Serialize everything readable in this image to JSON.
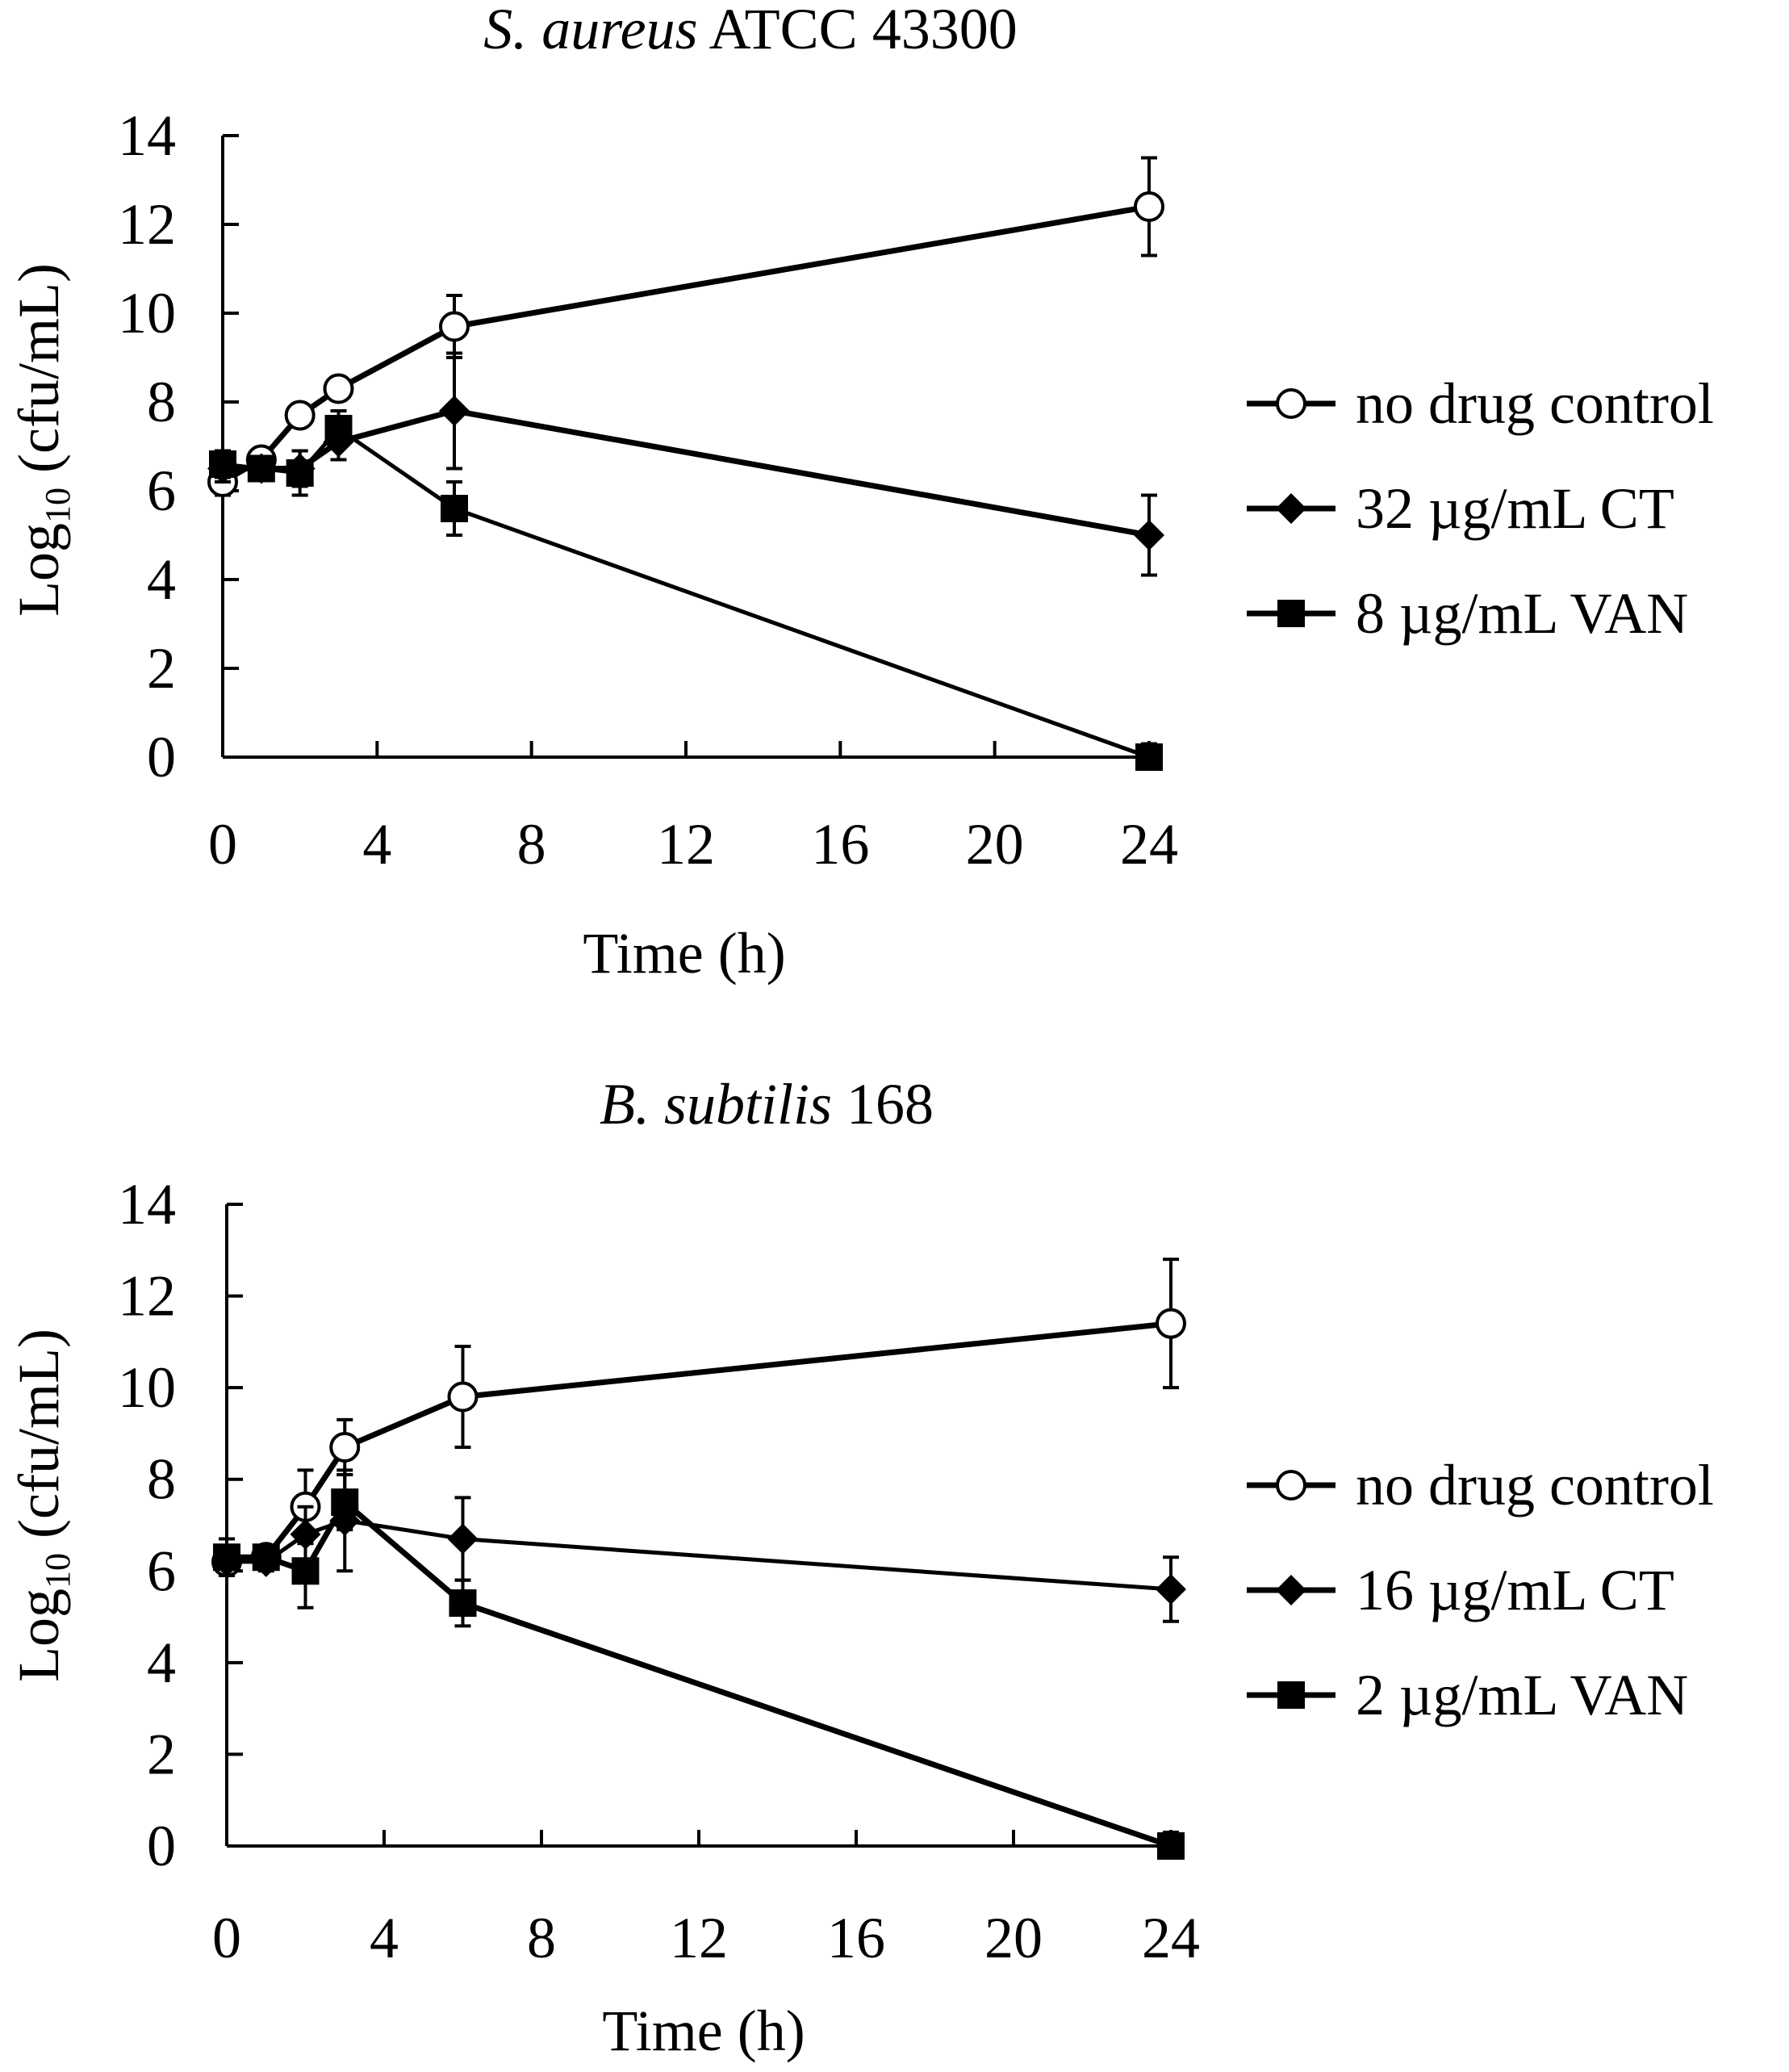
{
  "chart_data": [
    {
      "type": "line",
      "title_italic": "S. aureus",
      "title_rest": " ATCC 43300",
      "xlabel": "Time (h)",
      "ylabel_main": "Log",
      "ylabel_sub": "10",
      "ylabel_rest": " (cfu/mL)",
      "xlim": [
        0,
        24
      ],
      "ylim": [
        0,
        14
      ],
      "xticks": [
        0,
        4,
        8,
        12,
        16,
        20,
        24
      ],
      "yticks": [
        0,
        2,
        4,
        6,
        8,
        10,
        12,
        14
      ],
      "legend_position": "right",
      "series": [
        {
          "name": "no drug control",
          "marker": "open-circle",
          "x": [
            0,
            1,
            2,
            3,
            6,
            24
          ],
          "y": [
            6.2,
            6.7,
            7.7,
            8.3,
            9.7,
            12.4
          ],
          "err": [
            0.3,
            0.2,
            0.2,
            0.2,
            0.7,
            1.1
          ]
        },
        {
          "name": "32 µg/mL CT",
          "marker": "diamond",
          "x": [
            0,
            1,
            2,
            3,
            6,
            24
          ],
          "y": [
            6.5,
            6.5,
            6.5,
            7.1,
            7.8,
            5.0
          ],
          "err": [
            0.3,
            0.2,
            0.4,
            0.4,
            1.3,
            0.9
          ]
        },
        {
          "name": "8 µg/mL VAN",
          "marker": "square",
          "x": [
            0,
            1,
            2,
            3,
            6,
            24
          ],
          "y": [
            6.6,
            6.5,
            6.4,
            7.4,
            5.6,
            0.0
          ],
          "err": [
            0.3,
            0.2,
            0.5,
            0.4,
            0.6,
            0.3
          ]
        }
      ]
    },
    {
      "type": "line",
      "title_italic": "B. subtilis",
      "title_rest": " 168",
      "xlabel": "Time (h)",
      "ylabel_main": "Log",
      "ylabel_sub": "10",
      "ylabel_rest": " (cfu/mL)",
      "xlim": [
        0,
        24
      ],
      "ylim": [
        0,
        14
      ],
      "xticks": [
        0,
        4,
        8,
        12,
        16,
        20,
        24
      ],
      "yticks": [
        0,
        2,
        4,
        6,
        8,
        10,
        12,
        14
      ],
      "legend_position": "right",
      "series": [
        {
          "name": "no drug control",
          "marker": "open-circle",
          "x": [
            0,
            1,
            2,
            3,
            6,
            24
          ],
          "y": [
            6.2,
            6.3,
            7.4,
            8.7,
            9.8,
            11.4
          ],
          "err": [
            0.3,
            0.2,
            0.8,
            0.6,
            1.1,
            1.4
          ]
        },
        {
          "name": "16 µg/mL CT",
          "marker": "diamond",
          "x": [
            0,
            1,
            2,
            3,
            6,
            24
          ],
          "y": [
            6.2,
            6.2,
            6.8,
            7.1,
            6.7,
            5.6
          ],
          "err": [
            0.3,
            0.2,
            0.6,
            1.1,
            0.9,
            0.7
          ]
        },
        {
          "name": "2 µg/mL VAN",
          "marker": "square",
          "x": [
            0,
            1,
            2,
            3,
            6,
            24
          ],
          "y": [
            6.3,
            6.3,
            6.0,
            7.5,
            5.3,
            0.0
          ],
          "err": [
            0.4,
            0.2,
            0.8,
            0.6,
            0.5,
            0.3
          ]
        }
      ]
    }
  ]
}
